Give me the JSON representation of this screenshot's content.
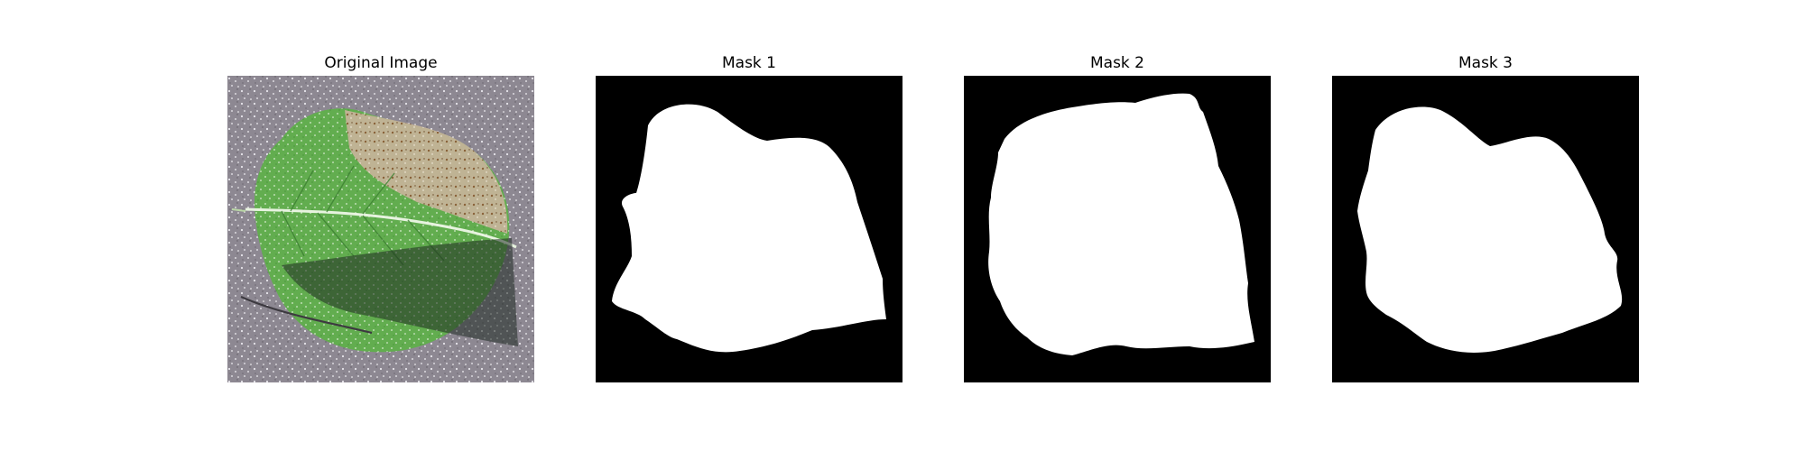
{
  "panels": [
    {
      "title": "Original Image",
      "content": "leaf-photo"
    },
    {
      "title": "Mask 1",
      "content": "binary-mask"
    },
    {
      "title": "Mask 2",
      "content": "binary-mask"
    },
    {
      "title": "Mask 3",
      "content": "binary-mask"
    }
  ],
  "colors": {
    "background": "#ffffff",
    "mask_foreground": "#ffffff",
    "mask_background": "#000000",
    "leaf_green": "#5da84a",
    "surface_gray": "#8f8a93"
  }
}
